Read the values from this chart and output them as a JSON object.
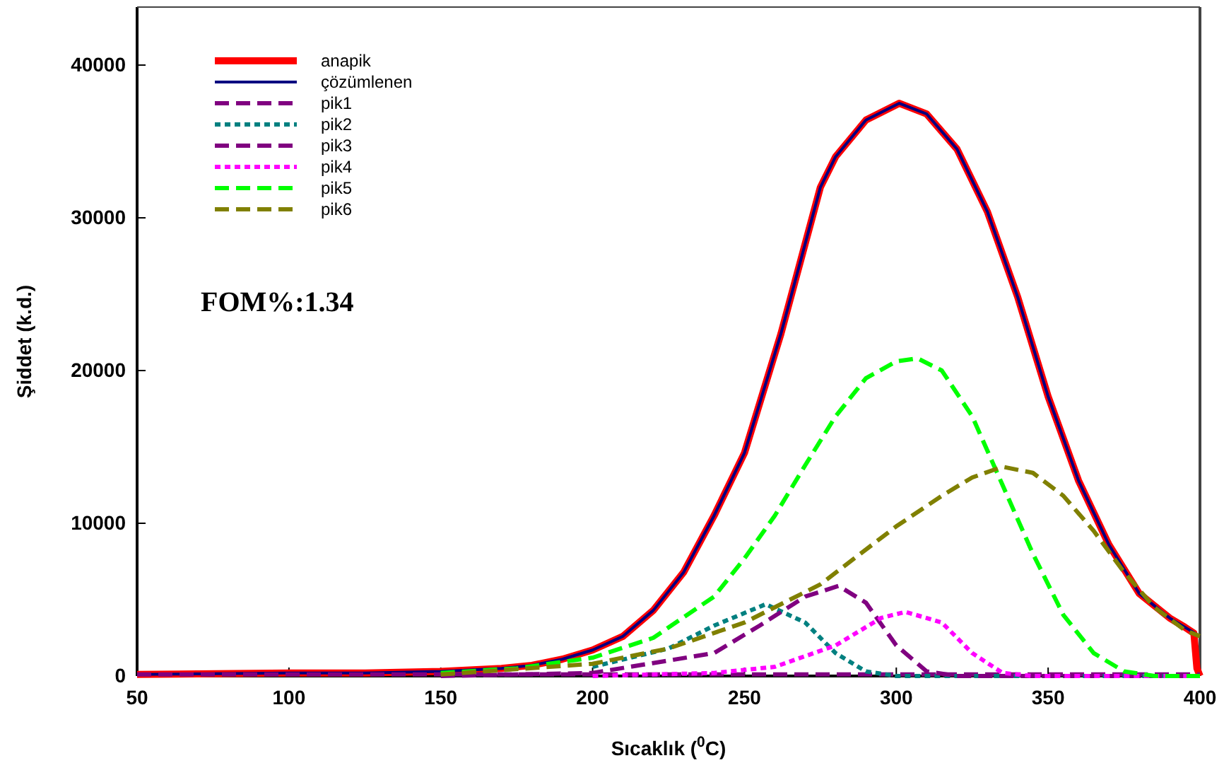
{
  "chart_data": {
    "type": "line",
    "xlabel": "Sıcaklık ($^{0}$C)",
    "ylabel": "Şiddet (k.d.)",
    "xlim": [
      50,
      400
    ],
    "xticks": [
      50,
      100,
      150,
      200,
      250,
      300,
      350,
      400
    ],
    "ylim": [
      0,
      43800
    ],
    "yticks": [
      0,
      10000,
      20000,
      30000,
      40000
    ],
    "grid": false,
    "legend": "top left",
    "annotations": [
      "FOM%:1.34"
    ],
    "series": [
      {
        "name": "anapik",
        "color": "#ff0000",
        "line_style": "solid",
        "x": [
          50,
          100,
          125,
          150,
          170,
          180,
          190,
          200,
          210,
          220,
          230,
          240,
          250,
          262,
          275,
          280,
          290,
          301,
          310,
          320,
          330,
          340,
          350,
          360,
          370,
          380,
          390,
          395,
          398,
          399,
          400
        ],
        "values": [
          100,
          200,
          200,
          300,
          500,
          700,
          1100,
          1700,
          2600,
          4300,
          6800,
          10500,
          14600,
          22400,
          32000,
          34000,
          36400,
          37500,
          36800,
          34500,
          30400,
          24800,
          18300,
          12800,
          8600,
          5400,
          3800,
          3200,
          2800,
          500,
          0
        ]
      },
      {
        "name": "çözümlenen",
        "color": "#000080",
        "line_style": "solid",
        "x": [
          50,
          100,
          125,
          150,
          170,
          180,
          190,
          200,
          210,
          220,
          230,
          240,
          250,
          262,
          275,
          280,
          290,
          301,
          310,
          320,
          330,
          340,
          350,
          360,
          370,
          380,
          390,
          395,
          400
        ],
        "values": [
          100,
          200,
          200,
          300,
          500,
          700,
          1100,
          1700,
          2600,
          4300,
          6800,
          10500,
          14600,
          22400,
          32000,
          34000,
          36400,
          37500,
          36800,
          34500,
          30400,
          24800,
          18300,
          12800,
          8600,
          5400,
          3800,
          3200,
          2600
        ]
      },
      {
        "name": "pik1",
        "color": "#800080",
        "line_style": "dashed",
        "x": [
          50,
          400
        ],
        "values": [
          100,
          100
        ]
      },
      {
        "name": "pik2",
        "color": "#008080",
        "line_style": "dotted",
        "x": [
          200,
          225,
          240,
          257,
          270,
          280,
          290,
          300,
          400
        ],
        "values": [
          600,
          1800,
          3300,
          4700,
          3500,
          1500,
          300,
          0,
          0
        ]
      },
      {
        "name": "pik3",
        "color": "#800080",
        "line_style": "dashed",
        "x": [
          150,
          200,
          240,
          255,
          270,
          281,
          290,
          300,
          310,
          320,
          400
        ],
        "values": [
          0,
          200,
          1500,
          3300,
          5200,
          5900,
          4800,
          2000,
          300,
          0,
          0
        ]
      },
      {
        "name": "pik4",
        "color": "#ff00ff",
        "line_style": "dotted",
        "x": [
          200,
          240,
          260,
          280,
          295,
          303,
          315,
          325,
          335,
          345,
          400
        ],
        "values": [
          0,
          200,
          600,
          2000,
          3800,
          4200,
          3500,
          1500,
          200,
          0,
          0
        ]
      },
      {
        "name": "pik5",
        "color": "#00ff00",
        "line_style": "dashed",
        "x": [
          150,
          175,
          200,
          220,
          240,
          250,
          260,
          270,
          280,
          290,
          300,
          307,
          315,
          325,
          335,
          345,
          355,
          365,
          375,
          385,
          400
        ],
        "values": [
          200,
          500,
          1200,
          2500,
          5200,
          7700,
          10500,
          13800,
          17000,
          19500,
          20600,
          20800,
          20000,
          17000,
          12500,
          8000,
          4000,
          1500,
          300,
          0,
          0
        ]
      },
      {
        "name": "pik6",
        "color": "#808000",
        "line_style": "dashed",
        "x": [
          150,
          200,
          225,
          250,
          275,
          300,
          315,
          325,
          335,
          345,
          355,
          365,
          375,
          385,
          395,
          400
        ],
        "values": [
          100,
          800,
          1800,
          3500,
          6000,
          9800,
          11800,
          13000,
          13700,
          13300,
          11800,
          9500,
          6800,
          4500,
          3000,
          2600
        ]
      }
    ]
  }
}
